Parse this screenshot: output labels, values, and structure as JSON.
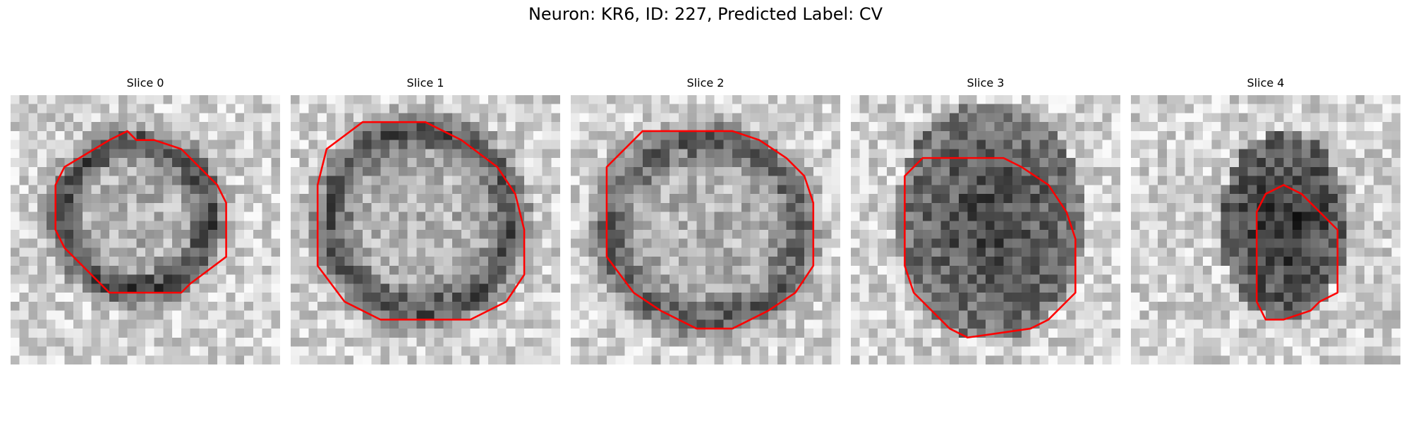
{
  "figure": {
    "title": "Neuron: KR6, ID: 227, Predicted Label: CV"
  },
  "slices": [
    {
      "label": "Slice 0"
    },
    {
      "label": "Slice 1"
    },
    {
      "label": "Slice 2"
    },
    {
      "label": "Slice 3"
    },
    {
      "label": "Slice 4"
    }
  ],
  "colors": {
    "contour": "#ff0000",
    "background": "#ffffff"
  }
}
